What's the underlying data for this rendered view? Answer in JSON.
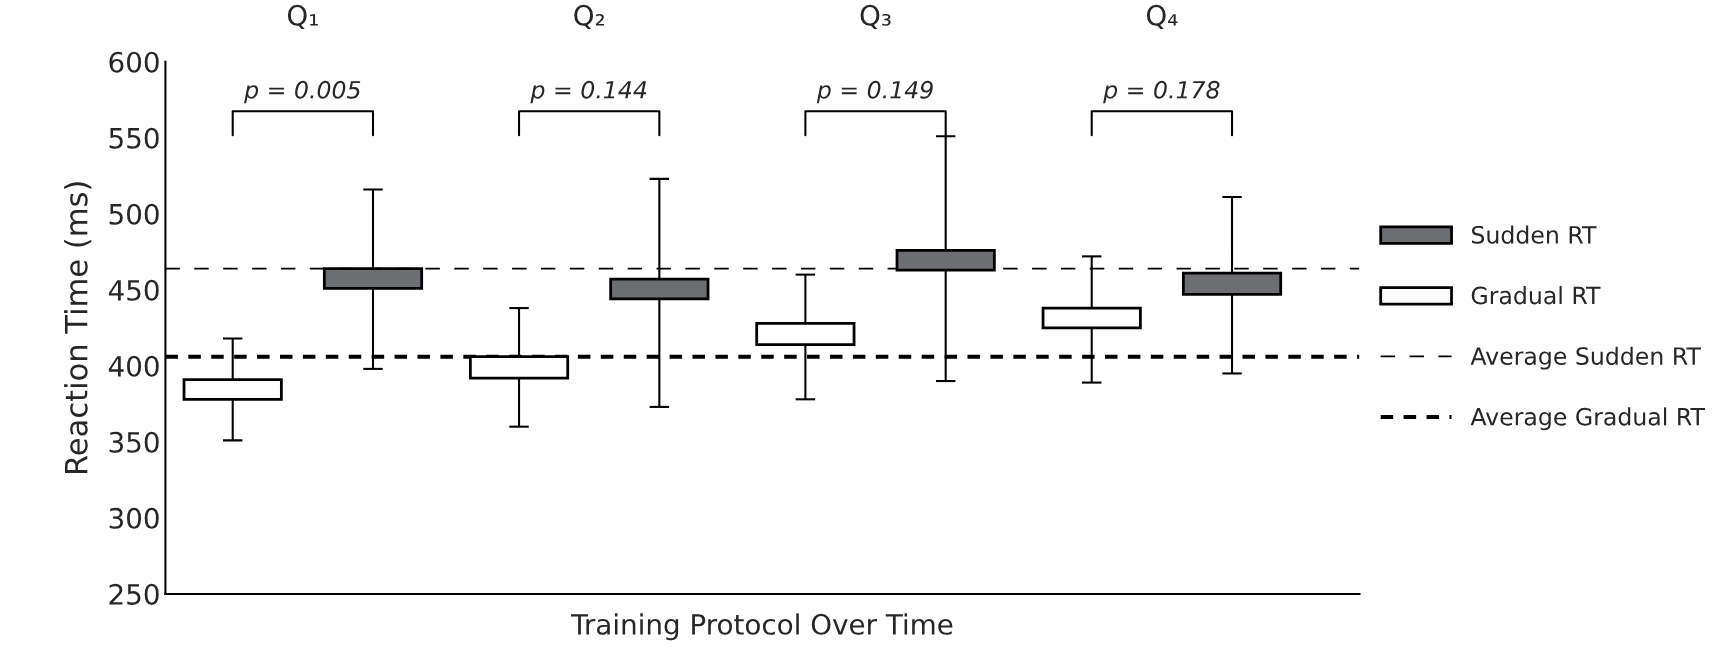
{
  "chart_data": {
    "type": "bar",
    "xlabel": "Training Protocol Over Time",
    "ylabel": "Reaction Time (ms)",
    "categories": [
      "Q₁",
      "Q₂",
      "Q₃",
      "Q₄"
    ],
    "series": [
      {
        "name": "Sudden RT",
        "color": "#6d6e71",
        "base": [
          451,
          444,
          463,
          447
        ],
        "values": [
          13,
          13,
          13,
          14
        ],
        "errors": [
          [
            398,
            516
          ],
          [
            373,
            523
          ],
          [
            390,
            551
          ],
          [
            395,
            511
          ]
        ]
      },
      {
        "name": "Gradual RT",
        "color": "#ffffff",
        "base": [
          378,
          392,
          414,
          425
        ],
        "values": [
          13,
          14,
          14,
          13
        ],
        "errors": [
          [
            351,
            418
          ],
          [
            360,
            438
          ],
          [
            378,
            460
          ],
          [
            389,
            472
          ]
        ]
      }
    ],
    "ylim": [
      250,
      600
    ],
    "yticks": [
      250,
      300,
      350,
      400,
      450,
      500,
      550,
      600
    ],
    "ref_lines": [
      {
        "axis": "y",
        "value": 464,
        "label": "Average Sudden RT",
        "line_style": "dashed"
      },
      {
        "axis": "y",
        "value": 406,
        "label": "Average Gradual RT",
        "line_style": "dotted"
      }
    ],
    "annotations": [
      "p = 0.005",
      "p = 0.144",
      "p = 0.149",
      "p = 0.178"
    ],
    "legend": "right",
    "grid": false
  }
}
